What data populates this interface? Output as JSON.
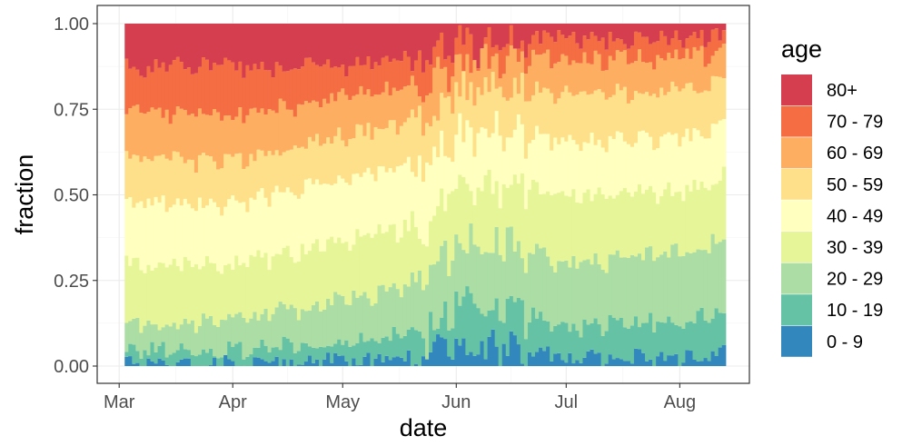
{
  "chart_data": {
    "type": "area",
    "subtype": "stacked-fraction-daily-bars",
    "xlabel": "date",
    "ylabel": "fraction",
    "x_start": "2020-03-03",
    "x_end": "2020-08-13",
    "x_ticks": [
      {
        "date": "2020-03-01",
        "label": "Mar"
      },
      {
        "date": "2020-04-01",
        "label": "Apr"
      },
      {
        "date": "2020-05-01",
        "label": "May"
      },
      {
        "date": "2020-06-01",
        "label": "Jun"
      },
      {
        "date": "2020-07-01",
        "label": "Jul"
      },
      {
        "date": "2020-08-01",
        "label": "Aug"
      }
    ],
    "ylim": [
      0,
      1
    ],
    "y_ticks": [
      {
        "value": 0.0,
        "label": "0.00"
      },
      {
        "value": 0.25,
        "label": "0.25"
      },
      {
        "value": 0.5,
        "label": "0.50"
      },
      {
        "value": 0.75,
        "label": "0.75"
      },
      {
        "value": 1.0,
        "label": "1.00"
      }
    ],
    "grid": true,
    "legend_title": "age",
    "legend_position": "right",
    "series": [
      {
        "name": "0 - 9",
        "color": "#3288bd"
      },
      {
        "name": "10 - 19",
        "color": "#66c2a5"
      },
      {
        "name": "20 - 29",
        "color": "#abdda4"
      },
      {
        "name": "30 - 39",
        "color": "#e6f598"
      },
      {
        "name": "40 - 49",
        "color": "#ffffbf"
      },
      {
        "name": "50 - 59",
        "color": "#fee08b"
      },
      {
        "name": "60 - 69",
        "color": "#fdae61"
      },
      {
        "name": "70 - 79",
        "color": "#f46d43"
      },
      {
        "name": "80+",
        "color": "#d53e4f"
      }
    ],
    "cumulative_boundaries_by_date": [
      {
        "date": "2020-03-03",
        "upper_bounds": [
          0.02,
          0.05,
          0.12,
          0.3,
          0.48,
          0.62,
          0.75,
          0.88,
          1.0
        ]
      },
      {
        "date": "2020-04-01",
        "upper_bounds": [
          0.01,
          0.05,
          0.14,
          0.3,
          0.48,
          0.6,
          0.74,
          0.88,
          1.0
        ]
      },
      {
        "date": "2020-05-01",
        "upper_bounds": [
          0.02,
          0.08,
          0.2,
          0.37,
          0.55,
          0.68,
          0.79,
          0.88,
          1.0
        ]
      },
      {
        "date": "2020-05-24",
        "upper_bounds": [
          0.03,
          0.1,
          0.24,
          0.42,
          0.6,
          0.73,
          0.83,
          0.91,
          1.0
        ]
      },
      {
        "date": "2020-06-01",
        "upper_bounds": [
          0.08,
          0.2,
          0.38,
          0.55,
          0.7,
          0.82,
          0.9,
          0.96,
          1.0
        ]
      },
      {
        "date": "2020-06-15",
        "upper_bounds": [
          0.06,
          0.18,
          0.37,
          0.55,
          0.7,
          0.82,
          0.91,
          0.96,
          1.0
        ]
      },
      {
        "date": "2020-07-01",
        "upper_bounds": [
          0.03,
          0.12,
          0.3,
          0.5,
          0.66,
          0.8,
          0.9,
          0.96,
          1.0
        ]
      },
      {
        "date": "2020-08-01",
        "upper_bounds": [
          0.03,
          0.14,
          0.34,
          0.52,
          0.67,
          0.81,
          0.91,
          0.96,
          1.0
        ]
      },
      {
        "date": "2020-08-13",
        "upper_bounds": [
          0.04,
          0.16,
          0.38,
          0.56,
          0.7,
          0.83,
          0.92,
          0.97,
          1.0
        ]
      }
    ]
  }
}
